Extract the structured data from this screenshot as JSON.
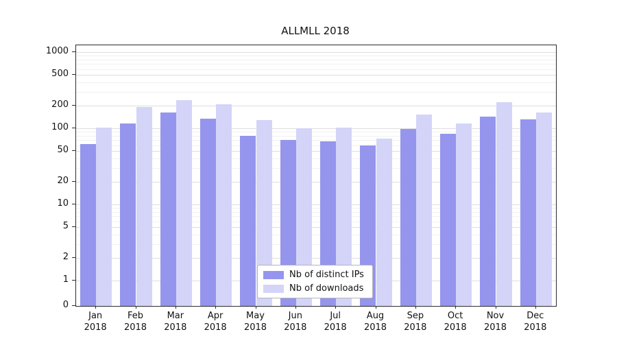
{
  "chart_data": {
    "type": "bar",
    "title": "ALLMLL 2018",
    "categories": [
      "Jan",
      "Feb",
      "Mar",
      "Apr",
      "May",
      "Jun",
      "Jul",
      "Aug",
      "Sep",
      "Oct",
      "Nov",
      "Dec"
    ],
    "year_label": "2018",
    "series": [
      {
        "name": "Nb of distinct IPs",
        "color": "#9595ee",
        "values": [
          62,
          115,
          160,
          135,
          80,
          70,
          67,
          60,
          97,
          85,
          143,
          132
        ]
      },
      {
        "name": "Nb of downloads",
        "color": "#d4d4f9",
        "values": [
          103,
          192,
          235,
          205,
          128,
          100,
          103,
          74,
          152,
          115,
          220,
          160
        ]
      }
    ],
    "yticks": [
      0,
      1,
      2,
      5,
      10,
      20,
      50,
      100,
      200,
      500,
      1000
    ],
    "yscale": "symlog",
    "ylim": [
      0,
      1000
    ],
    "grid": true,
    "legend_position": "bottom-center"
  }
}
